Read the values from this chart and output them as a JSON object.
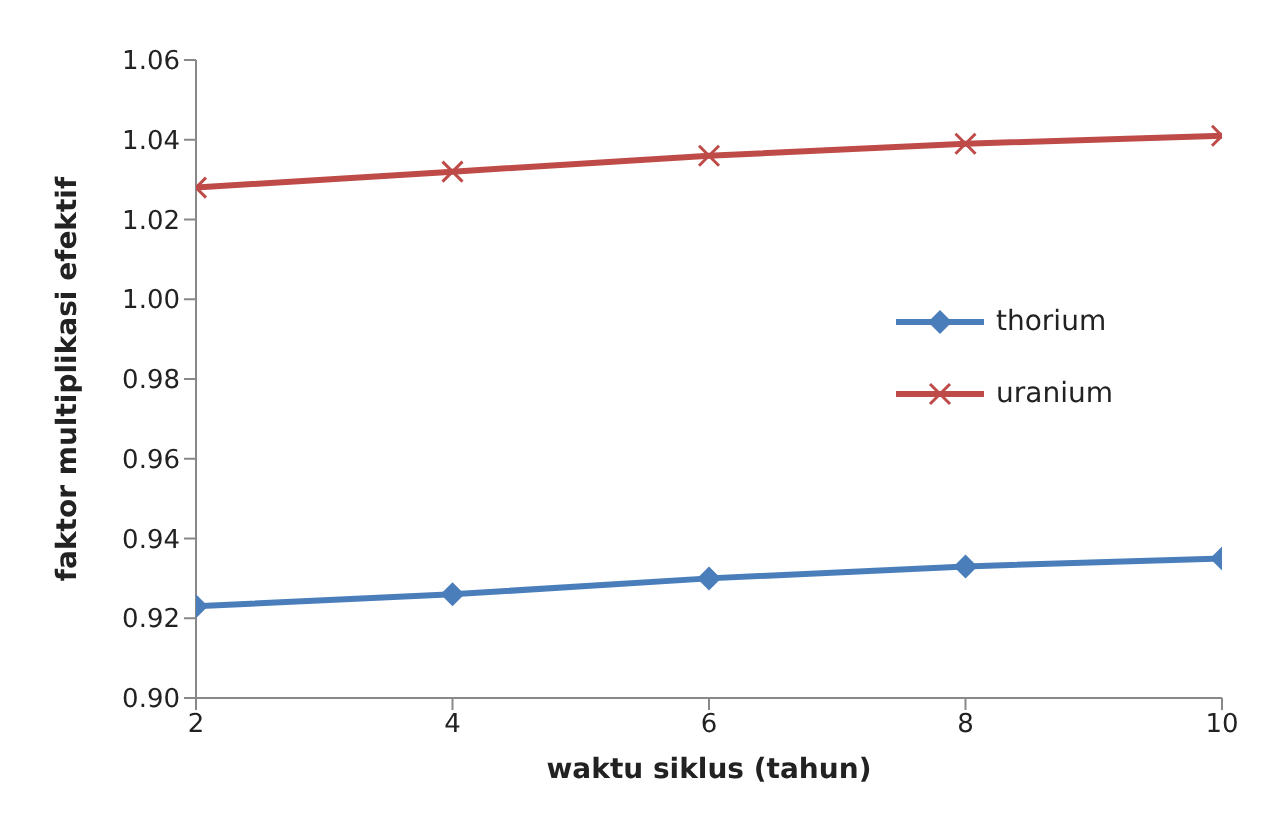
{
  "chart_data": {
    "type": "line",
    "xlabel": "waktu siklus (tahun)",
    "ylabel": "faktor multiplikasi efektif",
    "x": [
      2,
      4,
      6,
      8,
      10
    ],
    "xlim": [
      2,
      10
    ],
    "xticks": [
      2,
      4,
      6,
      8,
      10
    ],
    "ylim": [
      0.9,
      1.06
    ],
    "yticks": [
      {
        "value": 0.9,
        "label": "0.90"
      },
      {
        "value": 0.92,
        "label": "0.92"
      },
      {
        "value": 0.94,
        "label": "0.94"
      },
      {
        "value": 0.96,
        "label": "0.96"
      },
      {
        "value": 0.98,
        "label": "0.98"
      },
      {
        "value": 1.0,
        "label": "1.00"
      },
      {
        "value": 1.02,
        "label": "1.02"
      },
      {
        "value": 1.04,
        "label": "1.04"
      },
      {
        "value": 1.06,
        "label": "1.06"
      }
    ],
    "grid": false,
    "legend": "right",
    "line_style": "solid",
    "series": [
      {
        "name": "thorium",
        "color": "#4a7ebb",
        "marker": "diamond",
        "values": [
          0.923,
          0.926,
          0.93,
          0.933,
          0.935
        ]
      },
      {
        "name": "uranium",
        "color": "#be4b48",
        "marker": "cross",
        "values": [
          1.028,
          1.032,
          1.036,
          1.039,
          1.041
        ]
      }
    ]
  }
}
